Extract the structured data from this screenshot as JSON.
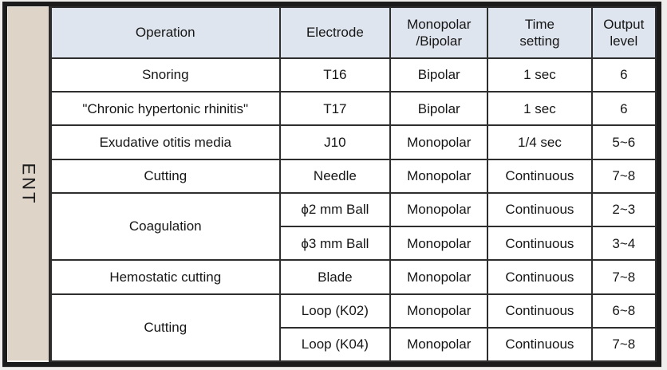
{
  "category": {
    "label": "ENT",
    "strip_color": "#ded4c8"
  },
  "table": {
    "header_bg": "#dfe5ee",
    "frame_color": "#1b1b1b",
    "header": {
      "operation": "Operation",
      "electrode": "Electrode",
      "mono_bipolar_line1": "Monopolar",
      "mono_bipolar_line2": "/Bipolar",
      "time_line1": "Time",
      "time_line2": "setting",
      "output_line1": "Output",
      "output_line2": "level"
    },
    "rows": [
      {
        "operation": "Snoring",
        "electrode": "T16",
        "mode": "Bipolar",
        "time": "1 sec",
        "output": "6"
      },
      {
        "operation": "\"Chronic hypertonic rhinitis\"",
        "electrode": "T17",
        "mode": "Bipolar",
        "time": "1 sec",
        "output": "6"
      },
      {
        "operation": "Exudative otitis media",
        "electrode": "J10",
        "mode": "Monopolar",
        "time": "1/4 sec",
        "output": "5~6"
      },
      {
        "operation": "Cutting",
        "electrode": "Needle",
        "mode": "Monopolar",
        "time": "Continuous",
        "output": "7~8"
      },
      {
        "operation": "Coagulation",
        "electrode": "ϕ2 mm Ball",
        "mode": "Monopolar",
        "time": "Continuous",
        "output": "2~3"
      },
      {
        "operation": "",
        "electrode": "ϕ3 mm Ball",
        "mode": "Monopolar",
        "time": "Continuous",
        "output": "3~4"
      },
      {
        "operation": "Hemostatic cutting",
        "electrode": "Blade",
        "mode": "Monopolar",
        "time": "Continuous",
        "output": "7~8"
      },
      {
        "operation": "Cutting",
        "electrode": "Loop (K02)",
        "mode": "Monopolar",
        "time": "Continuous",
        "output": "6~8"
      },
      {
        "operation": "",
        "electrode": "Loop (K04)",
        "mode": "Monopolar",
        "time": "Continuous",
        "output": "7~8"
      }
    ]
  }
}
